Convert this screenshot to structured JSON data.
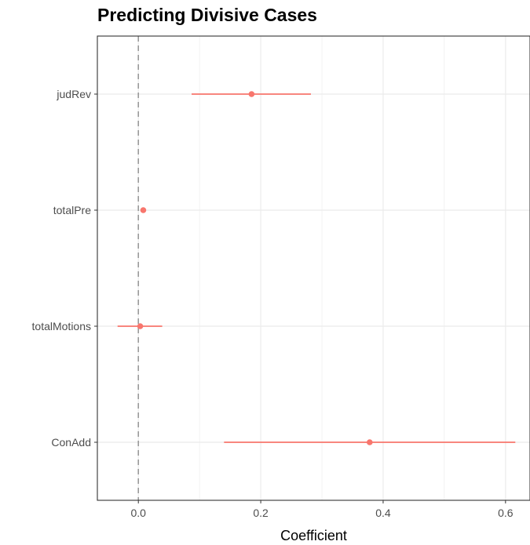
{
  "chart_data": {
    "type": "scatter",
    "title": "Predicting Divisive Cases",
    "xlabel": "Coefficient",
    "ylabel": "",
    "xlim": [
      -0.067,
      0.64
    ],
    "x_ticks": [
      0.0,
      0.2,
      0.4,
      0.6
    ],
    "x_tick_labels": [
      "0.0",
      "0.2",
      "0.4",
      "0.6"
    ],
    "categories": [
      "judRev",
      "totalPre",
      "totalMotions",
      "ConAdd"
    ],
    "series": [
      {
        "points": [
          {
            "term": "judRev",
            "estimate": 0.185,
            "low": 0.087,
            "high": 0.282
          },
          {
            "term": "totalPre",
            "estimate": 0.008,
            "low": 0.008,
            "high": 0.008
          },
          {
            "term": "totalMotions",
            "estimate": 0.003,
            "low": -0.034,
            "high": 0.039
          },
          {
            "term": "ConAdd",
            "estimate": 0.378,
            "low": 0.14,
            "high": 0.616
          }
        ]
      }
    ],
    "reference_line": {
      "x": 0,
      "style": "dashed"
    },
    "grid": true,
    "legend": "none",
    "colors": {
      "point": "#f8766d",
      "reference_line": "#999999",
      "grid": "#ebebeb",
      "panel_border": "#333333"
    }
  }
}
